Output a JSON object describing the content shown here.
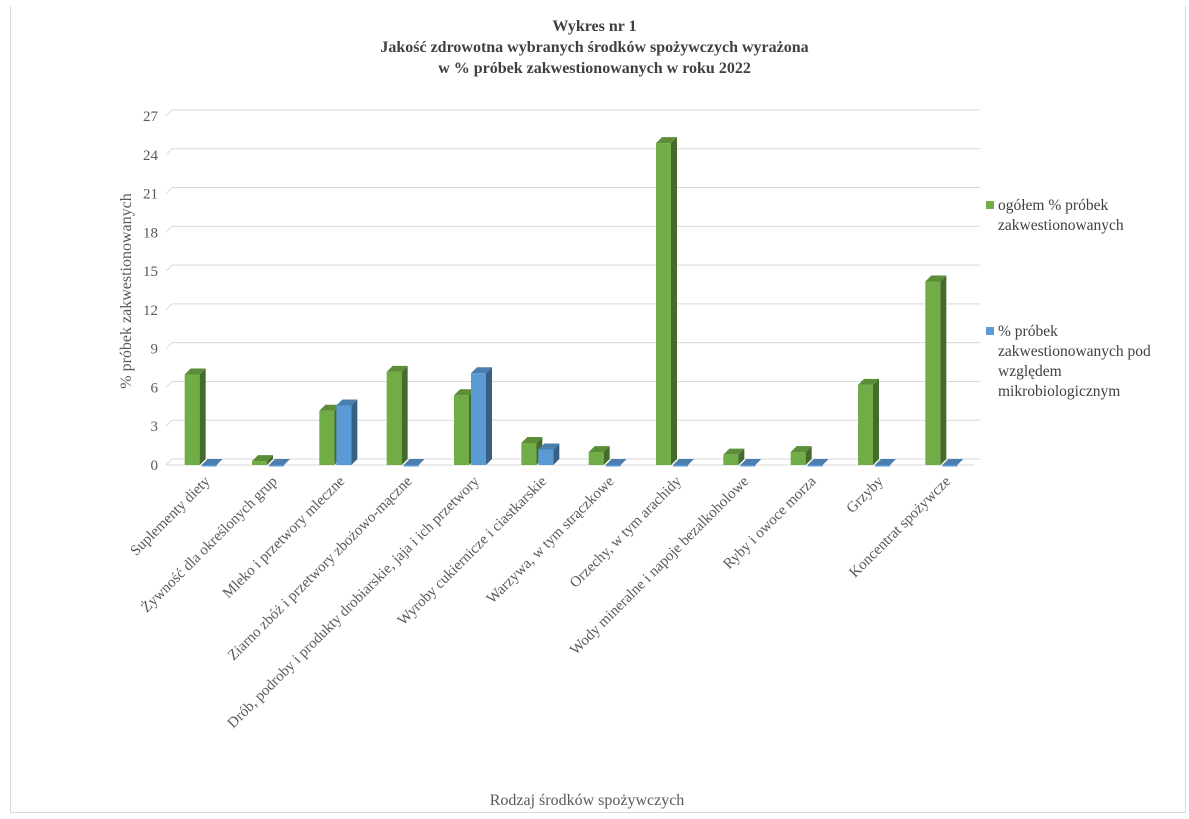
{
  "header_cut_text": ". . .",
  "chart_data": {
    "type": "bar",
    "title": "Wykres nr 1",
    "subtitle_lines": [
      "Jakość zdrowotna wybranych środków spożywczych wyrażona",
      "w % próbek zakwestionowanych w roku 2022"
    ],
    "xlabel": "Rodzaj środków spożywczych",
    "ylabel": "% próbek zakwestionowanych",
    "ylim": [
      0,
      27
    ],
    "yticks": [
      0,
      3,
      6,
      9,
      12,
      15,
      18,
      21,
      24,
      27
    ],
    "grid": true,
    "legend_position": "right",
    "style": "3d-clustered-column",
    "categories": [
      "Suplementy diety",
      "Żywność dla określonych grup",
      "Mleko i przetwory mleczne",
      "Ziarno zbóż i przetwory zbożowo-mączne",
      "Drób, podroby i produkty drobiarskie, jaja i ich przetwory",
      "Wyroby cukiernicze i ciastkarskie",
      "Warzywa, w tym strączkowe",
      "Orzechy, w tym arachidy",
      "Wody mineralne i napoje bezalkoholowe",
      "Ryby i owoce morza",
      "Grzyby",
      "Koncentrat spożywcze"
    ],
    "series": [
      {
        "name": "ogółem % próbek zakwestionowanych",
        "color": "#70ad47",
        "values": [
          7.0,
          0.3,
          4.2,
          7.2,
          5.4,
          1.7,
          1.0,
          24.9,
          0.8,
          1.0,
          6.2,
          14.2
        ]
      },
      {
        "name": "% próbek zakwestionowanych pod względem mikrobiologicznym",
        "color": "#5b9bd5",
        "values": [
          0,
          0,
          4.6,
          0,
          7.1,
          1.2,
          0,
          0,
          0,
          0,
          0,
          0
        ]
      }
    ]
  }
}
